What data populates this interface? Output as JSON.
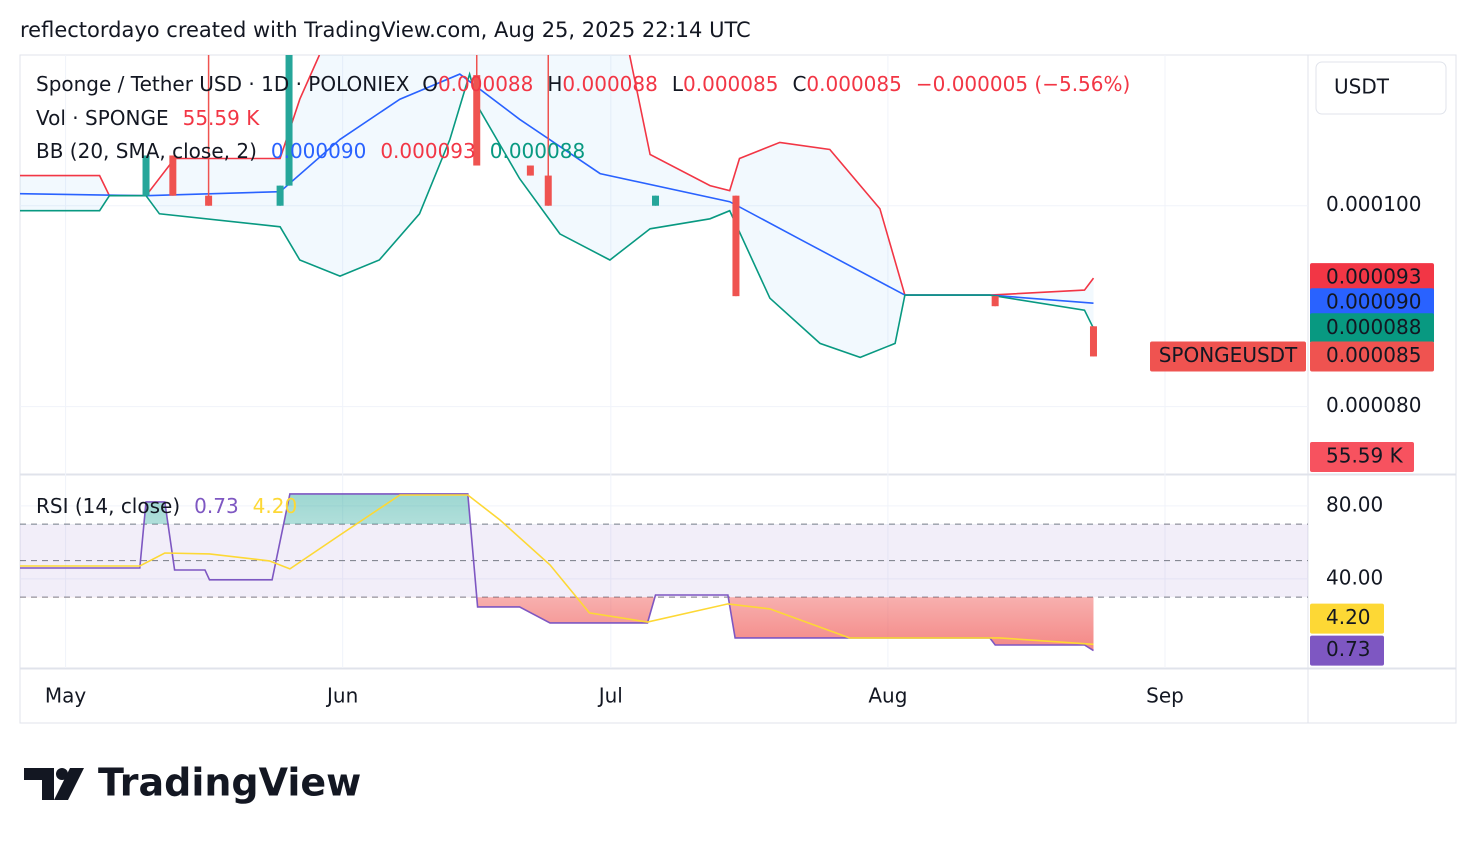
{
  "header": {
    "text": "reflectordayo created with TradingView.com, Aug 25, 2025 22:14 UTC"
  },
  "footer": {
    "brand": "TradingView"
  },
  "currency": "USDT",
  "legend": {
    "symbol": "Sponge / Tether USD · 1D · POLONIEX",
    "o_label": "O",
    "o": "0.000088",
    "h_label": "H",
    "h": "0.000088",
    "l_label": "L",
    "l": "0.000085",
    "c_label": "C",
    "change": "−0.000005 (−5.56%)"
  },
  "chart_data": [
    {
      "type": "candlestick",
      "x": [
        9,
        12,
        16,
        24,
        25,
        46,
        52,
        54,
        66,
        75,
        104,
        115
      ],
      "open": [
        0.000101,
        0.000105,
        0.000101,
        0.0001,
        0.000102,
        0.000113,
        0.000104,
        0.000103,
        0.0001,
        0.000101,
        9.1e-05,
        8.8e-05
      ],
      "high": [
        0.000105,
        0.000105,
        0.000118,
        0.000102,
        0.000118,
        0.000118,
        0.000104,
        0.000118,
        0.000101,
        0.000101,
        9.1e-05,
        8.8e-05
      ],
      "low": [
        0.000101,
        0.000101,
        0.0001,
        0.0001,
        0.000102,
        0.000104,
        0.000103,
        0.0001,
        0.0001,
        9.1e-05,
        9e-05,
        8.5e-05
      ],
      "close": [
        0.000105,
        0.000101,
        0.0001,
        0.000102,
        0.000118,
        0.000104,
        0.000103,
        0.0001,
        0.000101,
        9.1e-05,
        9e-05,
        8.5e-05
      ],
      "up_color": "#26a69a",
      "down_color": "#ef5350",
      "xlim": [
        -5.1,
        139
      ],
      "xticks": [
        {
          "value": 0,
          "label": "May"
        },
        {
          "value": 31,
          "label": "Jun"
        },
        {
          "value": 61,
          "label": "Jul"
        },
        {
          "value": 92,
          "label": "Aug"
        },
        {
          "value": 123,
          "label": "Sep"
        }
      ],
      "ylim": [
        7.34e-05,
        0.000115
      ],
      "yticks": [
        {
          "value": 0.0001,
          "label": "0.000100"
        },
        {
          "value": 8e-05,
          "label": "0.000080"
        }
      ],
      "grid": true,
      "last_price": {
        "symbol": "SPONGEUSDT",
        "value": 8.5e-05,
        "label": "0.000085"
      },
      "volume": {
        "name": "Vol · SPONGE",
        "label": "55.59 K"
      },
      "bollinger": {
        "name": "BB (20, SMA, close, 2)",
        "fill": "#2196f3",
        "basis": {
          "color": "#2962ff",
          "last_label": "0.000090",
          "x": [
            -5.1,
            9,
            24,
            30.7,
            37.4,
            44.1,
            50.8,
            59.8,
            74.3,
            82.1,
            93.9,
            103.4,
            115
          ],
          "values": [
            0.0001012,
            0.000101,
            0.0001014,
            0.0001066,
            0.0001106,
            0.0001131,
            0.0001086,
            0.0001032,
            0.0001004,
            9.67e-05,
            9.11e-05,
            9.11e-05,
            9.03e-05
          ]
        },
        "upper": {
          "color": "#f23645",
          "last_label": "0.000093",
          "x": [
            -5.1,
            3.8,
            4.9,
            9,
            12.2,
            24,
            26.2,
            28.4,
            45,
            63.1,
            65.4,
            72.1,
            74.3,
            75.4,
            79.9,
            85.5,
            91.1,
            93.9,
            103.4,
            114,
            115
          ],
          "values": [
            0.000103,
            0.000103,
            0.000101,
            0.000101,
            0.0001047,
            0.0001047,
            0.0001106,
            0.000115,
            null,
            0.000115,
            0.0001051,
            0.000102,
            0.0001015,
            0.0001047,
            0.0001063,
            0.0001056,
            9.97e-05,
            9.11e-05,
            9.11e-05,
            9.16e-05,
            9.28e-05
          ]
        },
        "lower": {
          "color": "#089981",
          "last_label": "0.000088",
          "x": [
            -5.1,
            3.8,
            4.9,
            9,
            10.5,
            24,
            26.2,
            30.7,
            35.1,
            39.6,
            43,
            45.2,
            46.3,
            50.8,
            55.3,
            60.9,
            65.4,
            72.1,
            74.3,
            78.8,
            84.4,
            88.9,
            92.8,
            93.9,
            103.4,
            114,
            115
          ],
          "values": [
            9.95e-05,
            9.95e-05,
            0.000101,
            0.000101,
            9.92e-05,
            9.79e-05,
            9.46e-05,
            9.3e-05,
            9.46e-05,
            9.92e-05,
            0.0001066,
            0.0001131,
            0.0001096,
            0.0001027,
            9.72e-05,
            9.46e-05,
            9.77e-05,
            9.87e-05,
            9.95e-05,
            9.08e-05,
            8.63e-05,
            8.49e-05,
            8.63e-05,
            9.11e-05,
            9.11e-05,
            8.96e-05,
            8.78e-05
          ]
        }
      }
    },
    {
      "type": "line",
      "name": "RSI (14, close)",
      "xlim": [
        -5.1,
        139
      ],
      "ylim": [
        -8.8,
        96.4
      ],
      "yticks": [
        {
          "value": 80,
          "label": "80.00"
        },
        {
          "value": 40,
          "label": "40.00"
        }
      ],
      "levels": [
        70,
        50,
        30
      ],
      "band_color": "#7e57c2",
      "series": [
        {
          "color": "#7e57c2",
          "last_label": "0.73",
          "x": [
            -5.1,
            8.3,
            9,
            11.1,
            12.2,
            15.6,
            16.1,
            23.1,
            25.1,
            45,
            46.1,
            50.8,
            54.2,
            65.1,
            66,
            74.1,
            74.9,
            103.4,
            104,
            114,
            115
          ],
          "values": [
            46,
            46,
            82.2,
            82.2,
            44.9,
            44.9,
            39.5,
            39.5,
            86.6,
            86.6,
            24.7,
            24.7,
            15.9,
            15.9,
            31.2,
            31.2,
            7.7,
            7.7,
            3.8,
            3.8,
            0.73
          ]
        },
        {
          "color": "#fdd835",
          "last_label": "4.20",
          "x": [
            -5.1,
            8.3,
            11.1,
            16.1,
            22.8,
            25.1,
            30.7,
            37.4,
            45,
            48.6,
            54.2,
            58.6,
            65.1,
            74.1,
            78.8,
            87.7,
            104.5,
            115
          ],
          "values": [
            47.1,
            47.1,
            54.2,
            53.7,
            49.9,
            45.5,
            64.1,
            86,
            86,
            72.3,
            47.7,
            21.4,
            16.4,
            26.3,
            23.6,
            7.7,
            7.7,
            4.2
          ]
        }
      ]
    }
  ]
}
